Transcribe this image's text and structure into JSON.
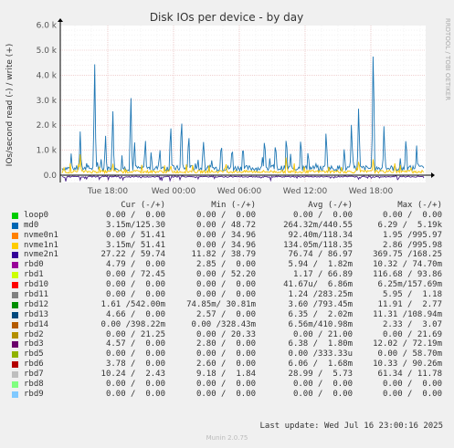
{
  "chart_data": {
    "type": "line",
    "title": "Disk IOs per device - by day",
    "ylabel": "IOs/second read (-) / write (+)",
    "side_label": "RRDTOOL / TOBI OETIKER",
    "yticks": [
      "6.0 k",
      "5.0 k",
      "4.0 k",
      "3.0 k",
      "2.0 k",
      "1.0 k",
      "0.0"
    ],
    "ylim": [
      -300,
      6000
    ],
    "xticks": [
      "Tue 18:00",
      "Wed 00:00",
      "Wed 06:00",
      "Wed 12:00",
      "Wed 18:00"
    ],
    "grid": true,
    "series": [
      {
        "name": "md0",
        "color": "#1f77b4",
        "baseline": 280,
        "spikes": [
          [
            0.05,
            1800
          ],
          [
            0.09,
            4700
          ],
          [
            0.14,
            2800
          ],
          [
            0.19,
            3500
          ],
          [
            0.23,
            1600
          ],
          [
            0.3,
            2300
          ],
          [
            0.33,
            2600
          ],
          [
            0.35,
            1900
          ],
          [
            0.39,
            1300
          ],
          [
            0.44,
            1500
          ],
          [
            0.5,
            1400
          ],
          [
            0.56,
            1600
          ],
          [
            0.62,
            1800
          ],
          [
            0.68,
            1100
          ],
          [
            0.73,
            2000
          ],
          [
            0.78,
            1200
          ],
          [
            0.8,
            2300
          ],
          [
            0.82,
            3000
          ],
          [
            0.86,
            5200
          ],
          [
            0.89,
            2100
          ],
          [
            0.95,
            1400
          ],
          [
            0.98,
            1200
          ],
          [
            0.12,
            1700
          ],
          [
            0.2,
            1500
          ],
          [
            0.27,
            1200
          ],
          [
            0.47,
            1300
          ],
          [
            0.59,
            1500
          ],
          [
            0.66,
            1700
          ]
        ]
      },
      {
        "name": "nvme1n1",
        "color": "#f5c400",
        "baseline": 140,
        "spikes": [
          [
            0.05,
            800
          ],
          [
            0.14,
            500
          ],
          [
            0.3,
            450
          ],
          [
            0.45,
            400
          ],
          [
            0.62,
            600
          ],
          [
            0.82,
            600
          ],
          [
            0.86,
            700
          ],
          [
            0.92,
            500
          ]
        ]
      },
      {
        "name": "nvme2n1",
        "color": "#4b1f8c",
        "baseline": -60,
        "spikes": [
          [
            0.01,
            -250
          ],
          [
            0.05,
            -200
          ],
          [
            0.3,
            -150
          ],
          [
            0.55,
            -150
          ],
          [
            0.82,
            -180
          ],
          [
            0.93,
            -150
          ]
        ]
      }
    ]
  },
  "legend": {
    "headers": {
      "cur": "Cur (-/+)",
      "min": "Min (-/+)",
      "avg": "Avg (-/+)",
      "max": "Max (-/+)"
    },
    "rows": [
      {
        "name": "loop0",
        "color": "#00cc00",
        "cur": "0.00 /  0.00",
        "min": "0.00 /  0.00",
        "avg": "0.00 /  0.00",
        "max": "0.00 /  0.00"
      },
      {
        "name": "md0",
        "color": "#0066b3",
        "cur": "3.15m/125.30",
        "min": "0.00 / 48.72",
        "avg": "264.32m/440.55",
        "max": "6.29 /  5.19k"
      },
      {
        "name": "nvme0n1",
        "color": "#ff8000",
        "cur": "0.00 / 51.41",
        "min": "0.00 / 34.96",
        "avg": "92.40m/118.34",
        "max": "1.95 /995.97"
      },
      {
        "name": "nvme1n1",
        "color": "#ffcc00",
        "cur": "3.15m/ 51.41",
        "min": "0.00 / 34.96",
        "avg": "134.05m/118.35",
        "max": "2.86 /995.98"
      },
      {
        "name": "nvme2n1",
        "color": "#330099",
        "cur": "27.22 / 59.74",
        "min": "11.82 / 38.79",
        "avg": "76.74 / 86.97",
        "max": "369.75 /168.25"
      },
      {
        "name": "rbd0",
        "color": "#990099",
        "cur": "4.79 /  0.00",
        "min": "2.85 /  0.00",
        "avg": "5.94 /  1.82m",
        "max": "10.32 / 74.70m"
      },
      {
        "name": "rbd1",
        "color": "#ccff00",
        "cur": "0.00 / 72.45",
        "min": "0.00 / 52.20",
        "avg": "1.17 / 66.89",
        "max": "116.68 / 93.86"
      },
      {
        "name": "rbd10",
        "color": "#ff0000",
        "cur": "0.00 /  0.00",
        "min": "0.00 /  0.00",
        "avg": "41.67u/  6.86m",
        "max": "6.25m/157.69m"
      },
      {
        "name": "rbd11",
        "color": "#808080",
        "cur": "0.00 /  0.00",
        "min": "0.00 /  0.00",
        "avg": "1.24 /283.25m",
        "max": "5.95 /  1.18"
      },
      {
        "name": "rbd12",
        "color": "#008f00",
        "cur": "1.61 /542.00m",
        "min": "74.85m/ 30.81m",
        "avg": "3.60 /793.45m",
        "max": "11.91 /  2.77"
      },
      {
        "name": "rbd13",
        "color": "#00487d",
        "cur": "4.66 /  0.00",
        "min": "2.57 /  0.00",
        "avg": "6.35 /  2.02m",
        "max": "11.31 /108.94m"
      },
      {
        "name": "rbd14",
        "color": "#b35a00",
        "cur": "0.00 /398.22m",
        "min": "0.00 /328.43m",
        "avg": "6.56m/410.98m",
        "max": "2.33 /  3.07"
      },
      {
        "name": "rbd2",
        "color": "#b38f00",
        "cur": "0.00 / 21.25",
        "min": "0.00 / 20.33",
        "avg": "0.00 / 21.00",
        "max": "0.00 / 21.69"
      },
      {
        "name": "rbd3",
        "color": "#6b006b",
        "cur": "4.57 /  0.00",
        "min": "2.80 /  0.00",
        "avg": "6.38 /  1.80m",
        "max": "12.02 / 72.19m"
      },
      {
        "name": "rbd5",
        "color": "#8fb300",
        "cur": "0.00 /  0.00",
        "min": "0.00 /  0.00",
        "avg": "0.00 /333.33u",
        "max": "0.00 / 58.70m"
      },
      {
        "name": "rbd6",
        "color": "#b30000",
        "cur": "3.78 /  0.00",
        "min": "2.60 /  0.00",
        "avg": "6.06 /  1.68m",
        "max": "10.33 / 90.26m"
      },
      {
        "name": "rbd7",
        "color": "#bebebe",
        "cur": "10.24 /  2.43",
        "min": "9.18 /  1.84",
        "avg": "28.99 /  5.73",
        "max": "61.34 / 11.78"
      },
      {
        "name": "rbd8",
        "color": "#80ff80",
        "cur": "0.00 /  0.00",
        "min": "0.00 /  0.00",
        "avg": "0.00 /  0.00",
        "max": "0.00 /  0.00"
      },
      {
        "name": "rbd9",
        "color": "#80c9ff",
        "cur": "0.00 /  0.00",
        "min": "0.00 /  0.00",
        "avg": "0.00 /  0.00",
        "max": "0.00 /  0.00"
      }
    ]
  },
  "footer": {
    "last_update": "Last update: Wed Jul 16 23:00:16 2025",
    "version": "Munin 2.0.75"
  }
}
